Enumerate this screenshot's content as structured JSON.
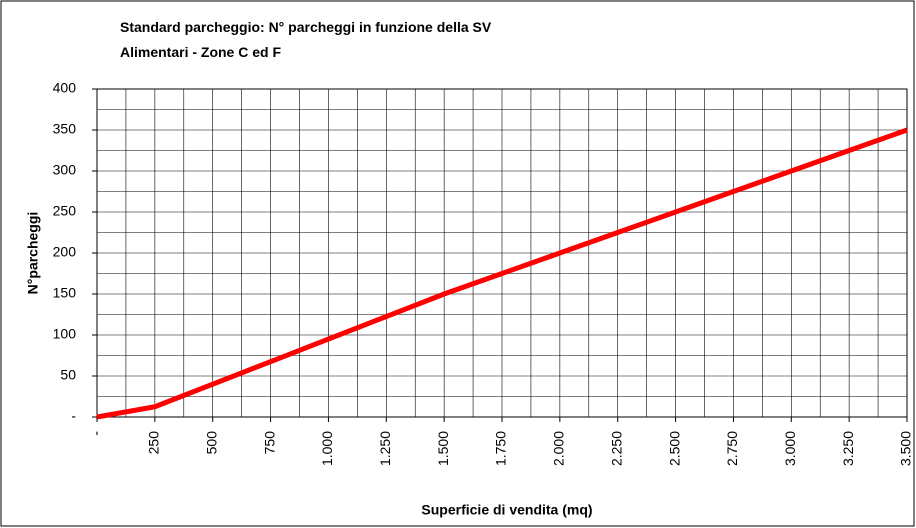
{
  "chart_data": {
    "type": "line",
    "title": "Standard parcheggio: N° parcheggi in funzione della SV",
    "subtitle": "Alimentari - Zone C ed F",
    "x_label": "Superficie di vendita (mq)",
    "y_label": "N°parcheggi",
    "x": [
      0,
      250,
      500,
      750,
      1000,
      1250,
      1500,
      1750,
      2000,
      2250,
      2500,
      2750,
      3000,
      3250,
      3500
    ],
    "series": [
      {
        "name": "N° parcheggi",
        "color": "#ff0000",
        "values": [
          0,
          12.5,
          40,
          67.5,
          95,
          122.5,
          150,
          175,
          200,
          225,
          250,
          275,
          300,
          325,
          350
        ]
      }
    ],
    "xlim": [
      0,
      3500
    ],
    "xticks": [
      {
        "value": 0,
        "label": "-"
      },
      250,
      500,
      750,
      {
        "value": 1000,
        "label": "1.000"
      },
      {
        "value": 1250,
        "label": "1.250"
      },
      {
        "value": 1500,
        "label": "1.500"
      },
      {
        "value": 1750,
        "label": "1.750"
      },
      {
        "value": 2000,
        "label": "2.000"
      },
      {
        "value": 2250,
        "label": "2.250"
      },
      {
        "value": 2500,
        "label": "2.500"
      },
      {
        "value": 2750,
        "label": "2.750"
      },
      {
        "value": 3000,
        "label": "3.000"
      },
      {
        "value": 3250,
        "label": "3.250"
      },
      {
        "value": 3500,
        "label": "3.500"
      }
    ],
    "ylim": [
      0,
      400
    ],
    "yticks": [
      {
        "value": 0,
        "label": "-"
      },
      50,
      100,
      150,
      200,
      250,
      300,
      350,
      400
    ],
    "grid": true
  }
}
